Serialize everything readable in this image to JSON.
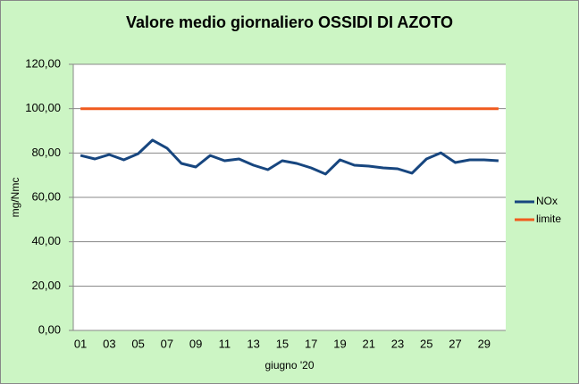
{
  "chart_data": {
    "type": "line",
    "title": "Valore medio giornaliero OSSIDI DI AZOTO",
    "x_label": "giugno '20",
    "y_label": "mg/Nmc",
    "categories": [
      "01",
      null,
      "03",
      null,
      "05",
      null,
      "07",
      null,
      "09",
      null,
      "11",
      null,
      "13",
      null,
      "15",
      null,
      "17",
      null,
      "19",
      null,
      "21",
      null,
      "23",
      null,
      "25",
      null,
      "27",
      null,
      "29",
      null
    ],
    "series": [
      {
        "name": "NOx",
        "color": "#17467f",
        "values": [
          78.9,
          77.3,
          79.3,
          76.9,
          79.7,
          85.8,
          82.2,
          75.3,
          73.7,
          78.9,
          76.5,
          77.3,
          74.5,
          72.5,
          76.5,
          75.3,
          73.3,
          70.5,
          76.9,
          74.5,
          74.1,
          73.3,
          72.9,
          70.9,
          77.3,
          80.1,
          75.7,
          76.9,
          76.9,
          76.5
        ]
      },
      {
        "name": "limite",
        "color": "#f05a1e",
        "values": [
          100,
          100,
          100,
          100,
          100,
          100,
          100,
          100,
          100,
          100,
          100,
          100,
          100,
          100,
          100,
          100,
          100,
          100,
          100,
          100,
          100,
          100,
          100,
          100,
          100,
          100,
          100,
          100,
          100,
          100
        ]
      }
    ],
    "ylim": [
      0,
      120
    ],
    "yticks": [
      {
        "value": 0,
        "label": "0,00"
      },
      {
        "value": 20,
        "label": "20,00"
      },
      {
        "value": 40,
        "label": "40,00"
      },
      {
        "value": 60,
        "label": "60,00"
      },
      {
        "value": 80,
        "label": "80,00"
      },
      {
        "value": 100,
        "label": "100,00"
      },
      {
        "value": 120,
        "label": "120,00"
      }
    ],
    "grid": true,
    "legend": "right"
  }
}
